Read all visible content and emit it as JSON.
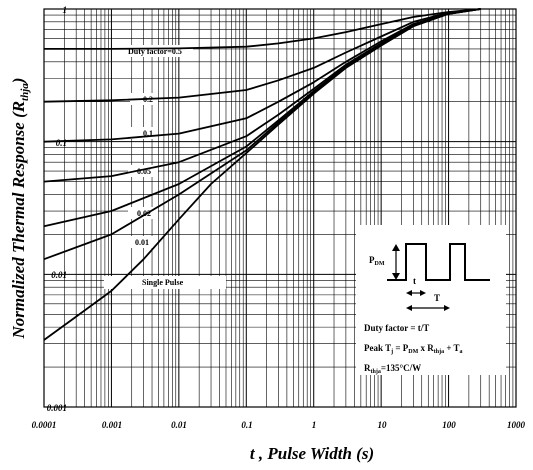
{
  "chart_data": {
    "type": "line",
    "title": "",
    "xlabel": "t , Pulse Width (s)",
    "ylabel": "Normalized Thermal Response (R",
    "ylabel_sub": "thja",
    "ylabel_close": ")",
    "x_scale": "log",
    "y_scale": "log",
    "xlim": [
      0.0001,
      1000
    ],
    "ylim": [
      0.001,
      1
    ],
    "grid": true,
    "x_ticks": [
      "0.0001",
      "0.001",
      "0.01",
      "0.1",
      "1",
      "10",
      "100",
      "1000"
    ],
    "x_tick_values": [
      0.0001,
      0.001,
      0.01,
      0.1,
      1,
      10,
      100,
      1000
    ],
    "y_ticks": [
      "1",
      "0.1",
      "0.01",
      "0.001"
    ],
    "y_tick_values": [
      1,
      0.1,
      0.01,
      0.001
    ],
    "series": [
      {
        "name": "Duty factor=0.5",
        "x": [
          0.0001,
          0.001,
          0.01,
          0.1,
          0.3,
          1,
          3,
          10,
          30,
          100,
          300
        ],
        "y": [
          0.5,
          0.5,
          0.505,
          0.52,
          0.55,
          0.6,
          0.67,
          0.77,
          0.87,
          0.95,
          1
        ]
      },
      {
        "name": "0.2",
        "x": [
          0.0001,
          0.001,
          0.01,
          0.1,
          0.3,
          1,
          3,
          10,
          30,
          100,
          300
        ],
        "y": [
          0.2,
          0.205,
          0.215,
          0.245,
          0.29,
          0.36,
          0.47,
          0.62,
          0.8,
          0.94,
          1
        ]
      },
      {
        "name": "0.1",
        "x": [
          0.0001,
          0.001,
          0.01,
          0.1,
          0.3,
          1,
          3,
          10,
          30,
          100,
          300
        ],
        "y": [
          0.1,
          0.104,
          0.115,
          0.15,
          0.2,
          0.28,
          0.4,
          0.57,
          0.77,
          0.93,
          1
        ]
      },
      {
        "name": "0.05",
        "x": [
          0.0001,
          0.001,
          0.01,
          0.1,
          0.3,
          1,
          3,
          10,
          30,
          100,
          300
        ],
        "y": [
          0.05,
          0.055,
          0.07,
          0.11,
          0.16,
          0.25,
          0.38,
          0.55,
          0.76,
          0.93,
          1
        ]
      },
      {
        "name": "0.02",
        "x": [
          0.0001,
          0.001,
          0.01,
          0.1,
          0.3,
          1,
          3,
          10,
          30,
          100,
          300
        ],
        "y": [
          0.023,
          0.03,
          0.048,
          0.092,
          0.145,
          0.24,
          0.37,
          0.54,
          0.75,
          0.92,
          1
        ]
      },
      {
        "name": "0.01",
        "x": [
          0.0001,
          0.001,
          0.01,
          0.1,
          0.3,
          1,
          3,
          10,
          30,
          100,
          300
        ],
        "y": [
          0.013,
          0.02,
          0.04,
          0.086,
          0.14,
          0.235,
          0.365,
          0.54,
          0.75,
          0.92,
          1
        ]
      },
      {
        "name": "Single Pulse",
        "x": [
          0.0001,
          0.0003,
          0.001,
          0.003,
          0.01,
          0.03,
          0.1,
          0.3,
          1,
          3,
          10,
          30,
          100,
          300
        ],
        "y": [
          0.0032,
          0.0048,
          0.0075,
          0.013,
          0.026,
          0.048,
          0.082,
          0.135,
          0.23,
          0.36,
          0.53,
          0.74,
          0.92,
          1
        ]
      }
    ]
  },
  "legend_labels": {
    "d05": "Duty factor=0.5",
    "d02": "0.2",
    "d01": "0.1",
    "d005": "0.05",
    "d002": "0.02",
    "d001": "0.01",
    "single": "Single Pulse"
  },
  "inset": {
    "pdm_label": "P",
    "pdm_sub": "DM",
    "t_label": "t",
    "T_label": "T",
    "duty_line": "Duty factor = t/T",
    "peak_prefix": "Peak T",
    "peak_sub_j": "j",
    "peak_eq": " = P",
    "peak_sub_dm": "DM",
    "peak_x": " x R",
    "peak_sub_thja": "thja",
    "peak_plus": " + T",
    "peak_sub_a": "a",
    "rth_prefix": "R",
    "rth_sub": "thja",
    "rth_value": "=135°C/W"
  }
}
